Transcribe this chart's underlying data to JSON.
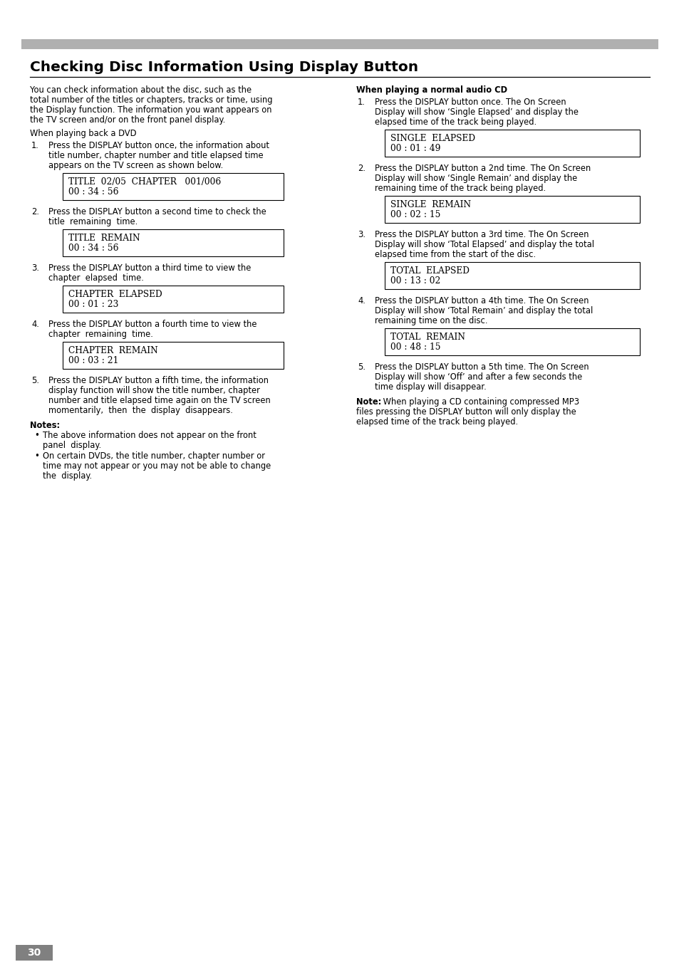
{
  "title": "Checking Disc Information Using Display Button",
  "page_number": "30",
  "bg_color": "#ffffff",
  "header_bar_color": "#b0b0b0",
  "left_column": {
    "intro_lines": [
      "You can check information about the disc, such as the",
      "total number of the titles or chapters, tracks or time, using",
      "the Display function. The information you want appears on",
      "the TV screen and/or on the front panel display."
    ],
    "dvd_heading": "When playing back a DVD",
    "steps": [
      {
        "num": "1.",
        "text_lines": [
          "Press the DISPLAY button once, the information about",
          "title number, chapter number and title elapsed time",
          "appears on the TV screen as shown below."
        ],
        "box_line1": "TITLE  02/05  CHAPTER   001/006",
        "box_line2": "00 : 34 : 56"
      },
      {
        "num": "2.",
        "text_lines": [
          "Press the DISPLAY button a second time to check the",
          "title  remaining  time."
        ],
        "box_line1": "TITLE  REMAIN",
        "box_line2": "00 : 34 : 56"
      },
      {
        "num": "3.",
        "text_lines": [
          "Press the DISPLAY button a third time to view the",
          "chapter  elapsed  time."
        ],
        "box_line1": "CHAPTER  ELAPSED",
        "box_line2": "00 : 01 : 23"
      },
      {
        "num": "4.",
        "text_lines": [
          "Press the DISPLAY button a fourth time to view the",
          "chapter  remaining  time."
        ],
        "box_line1": "CHAPTER  REMAIN",
        "box_line2": "00 : 03 : 21"
      },
      {
        "num": "5.",
        "text_lines": [
          "Press the DISPLAY button a fifth time, the information",
          "display function will show the title number, chapter",
          "number and title elapsed time again on the TV screen",
          "momentarily,  then  the  display  disappears."
        ],
        "box_line1": null,
        "box_line2": null
      }
    ],
    "notes_heading": "Notes:",
    "notes": [
      [
        "The above information does not appear on the front",
        "panel  display."
      ],
      [
        "On certain DVDs, the title number, chapter number or",
        "time may not appear or you may not be able to change",
        "the  display."
      ]
    ]
  },
  "right_column": {
    "heading": "When playing a normal audio CD",
    "steps": [
      {
        "num": "1.",
        "text_lines": [
          "Press the DISPLAY button once. The On Screen",
          "Display will show ‘Single Elapsed’ and display the",
          "elapsed time of the track being played."
        ],
        "box_line1": "SINGLE  ELAPSED",
        "box_line2": "00 : 01 : 49"
      },
      {
        "num": "2.",
        "text_lines": [
          "Press the DISPLAY button a 2nd time. The On Screen",
          "Display will show ‘Single Remain’ and display the",
          "remaining time of the track being played."
        ],
        "box_line1": "SINGLE  REMAIN",
        "box_line2": "00 : 02 : 15"
      },
      {
        "num": "3.",
        "text_lines": [
          "Press the DISPLAY button a 3rd time. The On Screen",
          "Display will show ‘Total Elapsed’ and display the total",
          "elapsed time from the start of the disc."
        ],
        "box_line1": "TOTAL  ELAPSED",
        "box_line2": "00 : 13 : 02"
      },
      {
        "num": "4.",
        "text_lines": [
          "Press the DISPLAY button a 4th time. The On Screen",
          "Display will show ‘Total Remain’ and display the total",
          "remaining time on the disc."
        ],
        "box_line1": "TOTAL  REMAIN",
        "box_line2": "00 : 48 : 15"
      },
      {
        "num": "5.",
        "text_lines": [
          "Press the DISPLAY button a 5th time. The On Screen",
          "Display will show ‘Off’ and after a few seconds the",
          "time display will disappear."
        ],
        "box_line1": null,
        "box_line2": null
      }
    ],
    "note_bold": "Note:",
    "note_text_lines": [
      " When playing a CD containing compressed MP3",
      "files pressing the DISPLAY button will only display the",
      "elapsed time of the track being played."
    ]
  }
}
